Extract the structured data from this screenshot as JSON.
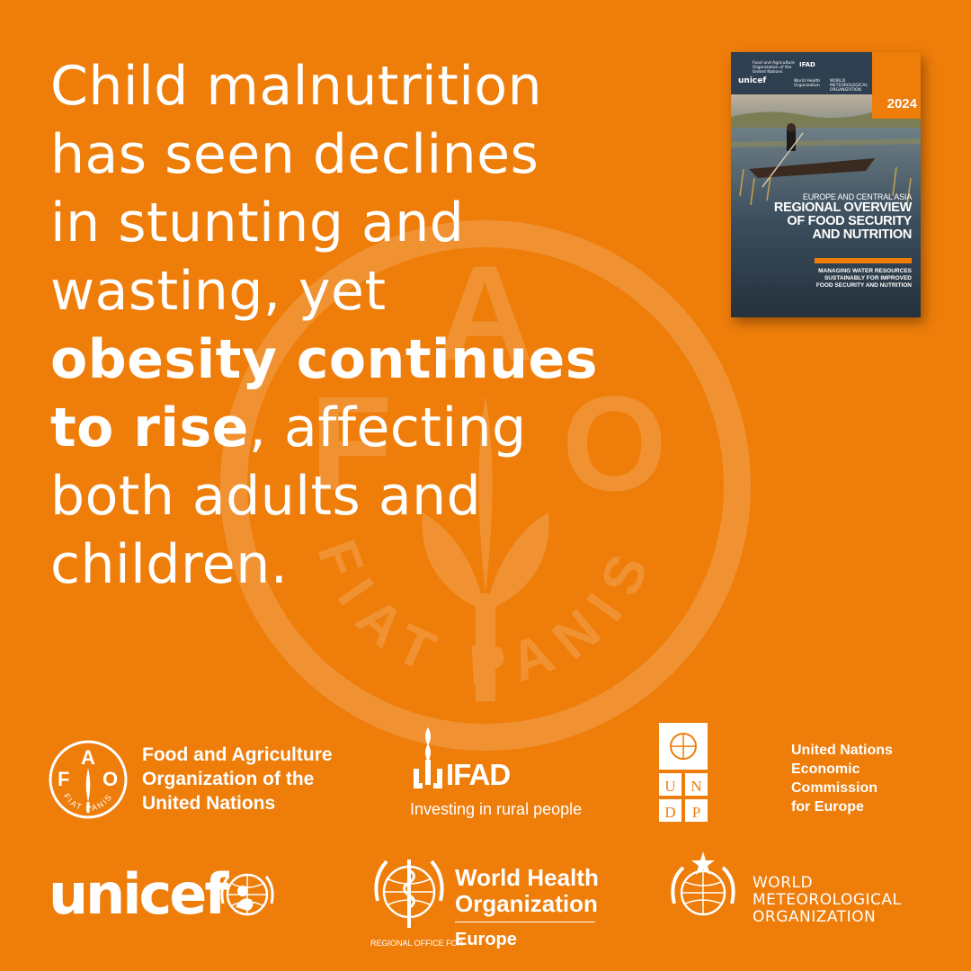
{
  "headline": {
    "line1": "Child malnutrition",
    "line2": "has seen declines",
    "line3": "in stunting and",
    "line4": "wasting, yet",
    "bold1": "obesity continues",
    "bold2": "to rise",
    "line6_rest": ", affecting",
    "line7": "both adults and",
    "line8": "children."
  },
  "background_emblem": {
    "letters": [
      "F",
      "A",
      "O"
    ],
    "motto": "FIAT PANIS"
  },
  "cover": {
    "year": "2024",
    "subtitle": "EUROPE AND CENTRAL ASIA",
    "title_lines": [
      "REGIONAL OVERVIEW",
      "OF FOOD SECURITY",
      "AND NUTRITION"
    ],
    "description_lines": [
      "MANAGING WATER RESOURCES",
      "SUSTAINABLY FOR IMPROVED",
      "FOOD SECURITY AND NUTRITION"
    ],
    "logo_texts": {
      "fao": "Food and Agriculture Organization of the United Nations",
      "ifad": "IFAD",
      "unicef": "unicef",
      "who": "World Health Organization",
      "wmo": "WORLD METEOROLOGICAL ORGANIZATION"
    }
  },
  "partners": {
    "fao": {
      "lines": [
        "Food and Agriculture",
        "Organization of the",
        "United Nations"
      ],
      "emblem_letters": [
        "F",
        "A",
        "O"
      ],
      "motto": "FIAT PANIS"
    },
    "ifad": {
      "name": "IFAD",
      "tagline": "Investing in rural people"
    },
    "undp": {
      "letters": [
        "U",
        "N",
        "D",
        "P"
      ]
    },
    "unece": {
      "lines": [
        "United Nations",
        "Economic",
        "Commission",
        "for Europe"
      ]
    },
    "unicef": {
      "name": "unicef"
    },
    "who": {
      "lines": [
        "World Health",
        "Organization"
      ],
      "region_prefix": "REGIONAL OFFICE FOR",
      "region": "Europe"
    },
    "wmo": {
      "lines": [
        "WORLD",
        "METEOROLOGICAL",
        "ORGANIZATION"
      ]
    }
  },
  "colors": {
    "background": "#EE7D0A",
    "text": "#FFFFFF",
    "cover_dark": "#2e3f50"
  }
}
